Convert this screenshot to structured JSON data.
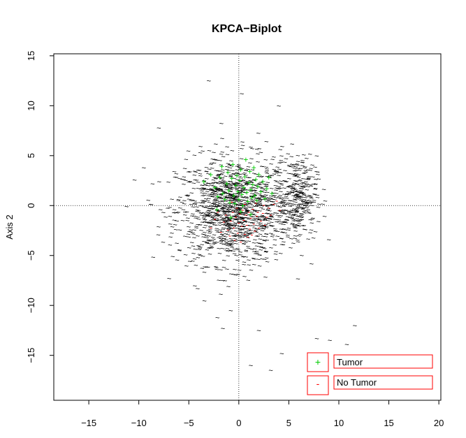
{
  "chart_data": {
    "type": "scatter",
    "title": "KPCA−Biplot",
    "xlabel": "",
    "ylabel": "Axis 2",
    "xlim": [
      -18.5,
      20.2
    ],
    "ylim": [
      -19.5,
      15.2
    ],
    "x_ticks": [
      -15,
      -10,
      -5,
      0,
      5,
      10,
      15,
      20
    ],
    "x_tick_labels": [
      "−15",
      "−10",
      "−5",
      "0",
      "5",
      "10",
      "15",
      "20"
    ],
    "y_ticks": [
      -15,
      -10,
      -5,
      0,
      5,
      10,
      15
    ],
    "y_tick_labels": [
      "−15",
      "−10",
      "−5",
      "0",
      "5",
      "10",
      "15"
    ],
    "reference_lines": {
      "x": 0,
      "y": 0,
      "style": "dotted"
    },
    "background_symbol": "~",
    "background_color": "#000000",
    "background_clusters": [
      {
        "center": [
          -0.5,
          -0.5
        ],
        "spread": [
          4.6,
          4.3
        ],
        "count": 1350
      },
      {
        "center": [
          5.8,
          1.0
        ],
        "spread": [
          1.6,
          3.2
        ],
        "count": 320
      }
    ],
    "background_outliers": [
      [
        7.8,
        -13.3
      ],
      [
        9.1,
        -13.5
      ],
      [
        10.8,
        -13.9
      ],
      [
        11.6,
        -12.0
      ],
      [
        4.3,
        -14.8
      ],
      [
        3.2,
        -16.5
      ],
      [
        1.2,
        -16.0
      ],
      [
        -1.6,
        -12.3
      ],
      [
        -3.0,
        12.5
      ],
      [
        0.3,
        11.2
      ],
      [
        4.0,
        10.0
      ],
      [
        -8.0,
        7.8
      ],
      [
        -9.5,
        3.8
      ],
      [
        9.0,
        -3.4
      ],
      [
        -0.8,
        -10.5
      ],
      [
        2.0,
        -12.5
      ]
    ],
    "series": [
      {
        "name": "Tumor",
        "marker": "+",
        "color": "#00cc00",
        "points": [
          [
            -3.5,
            2.4
          ],
          [
            -2.8,
            3.1
          ],
          [
            -2.4,
            1.8
          ],
          [
            -2.1,
            0.9
          ],
          [
            -1.9,
            2.8
          ],
          [
            -1.7,
            3.9
          ],
          [
            -1.6,
            1.2
          ],
          [
            -1.4,
            0.6
          ],
          [
            -1.2,
            2.2
          ],
          [
            -1.1,
            3.3
          ],
          [
            -1.0,
            1.5
          ],
          [
            -0.9,
            0.3
          ],
          [
            -0.7,
            2.7
          ],
          [
            -0.6,
            4.1
          ],
          [
            -0.5,
            1.0
          ],
          [
            -0.4,
            0.2
          ],
          [
            -0.3,
            2.0
          ],
          [
            -0.2,
            3.0
          ],
          [
            -0.1,
            1.4
          ],
          [
            0.0,
            0.6
          ],
          [
            0.1,
            2.5
          ],
          [
            0.2,
            3.6
          ],
          [
            0.3,
            1.1
          ],
          [
            0.4,
            0.0
          ],
          [
            0.5,
            1.8
          ],
          [
            0.6,
            2.9
          ],
          [
            0.7,
            4.6
          ],
          [
            0.8,
            1.3
          ],
          [
            0.9,
            0.4
          ],
          [
            1.0,
            2.3
          ],
          [
            1.1,
            3.4
          ],
          [
            1.2,
            1.6
          ],
          [
            1.3,
            0.8
          ],
          [
            1.4,
            2.1
          ],
          [
            1.5,
            3.8
          ],
          [
            1.6,
            1.0
          ],
          [
            1.7,
            2.6
          ],
          [
            1.8,
            0.5
          ],
          [
            1.9,
            1.9
          ],
          [
            2.0,
            3.1
          ],
          [
            2.2,
            1.4
          ],
          [
            2.4,
            2.4
          ],
          [
            2.6,
            0.7
          ],
          [
            2.8,
            1.7
          ],
          [
            3.0,
            2.8
          ],
          [
            3.3,
            1.2
          ],
          [
            0.2,
            -0.6
          ],
          [
            -0.8,
            -1.2
          ],
          [
            1.2,
            -0.9
          ],
          [
            -2.2,
            -0.4
          ]
        ]
      },
      {
        "name": "No Tumor",
        "marker": "-",
        "color": "#ff0000",
        "points": [
          [
            -2.8,
            -2.2
          ],
          [
            -2.4,
            -1.3
          ],
          [
            -2.1,
            -0.6
          ],
          [
            -1.8,
            -2.6
          ],
          [
            -1.5,
            -1.6
          ],
          [
            -1.3,
            -0.9
          ],
          [
            -1.1,
            -2.4
          ],
          [
            -0.9,
            -3.0
          ],
          [
            -0.8,
            -1.5
          ],
          [
            -0.6,
            -0.6
          ],
          [
            -0.5,
            -2.2
          ],
          [
            -0.4,
            -3.4
          ],
          [
            -0.3,
            -1.1
          ],
          [
            -0.2,
            -0.2
          ],
          [
            -0.1,
            -2.7
          ],
          [
            0.0,
            -1.7
          ],
          [
            0.1,
            -0.8
          ],
          [
            0.2,
            -3.6
          ],
          [
            0.3,
            -2.0
          ],
          [
            0.4,
            -0.4
          ],
          [
            0.5,
            -1.4
          ],
          [
            0.6,
            -2.8
          ],
          [
            0.7,
            -0.9
          ],
          [
            0.8,
            -1.9
          ],
          [
            0.9,
            -3.1
          ],
          [
            1.0,
            -0.6
          ],
          [
            1.1,
            -2.3
          ],
          [
            1.2,
            -1.2
          ],
          [
            1.3,
            -2.9
          ],
          [
            1.4,
            -0.3
          ],
          [
            1.5,
            -1.8
          ],
          [
            1.6,
            -2.5
          ],
          [
            1.8,
            -1.0
          ],
          [
            1.9,
            -0.6
          ],
          [
            2.0,
            -2.2
          ],
          [
            2.2,
            -1.5
          ],
          [
            2.4,
            -0.7
          ],
          [
            2.6,
            -1.9
          ],
          [
            2.8,
            -1.1
          ],
          [
            3.0,
            -0.2
          ],
          [
            3.2,
            -0.9
          ],
          [
            3.5,
            0.2
          ],
          [
            3.8,
            0.5
          ],
          [
            4.1,
            -0.4
          ],
          [
            0.6,
            0.2
          ],
          [
            -0.7,
            0.4
          ],
          [
            1.7,
            0.3
          ],
          [
            2.5,
            0.1
          ]
        ]
      }
    ],
    "legend": {
      "placement": "bottom-right",
      "entries": [
        {
          "symbol": "+",
          "label": "Tumor",
          "color": "#00cc00"
        },
        {
          "symbol": "-",
          "label": "No Tumor",
          "color": "#ff0000"
        }
      ]
    }
  }
}
